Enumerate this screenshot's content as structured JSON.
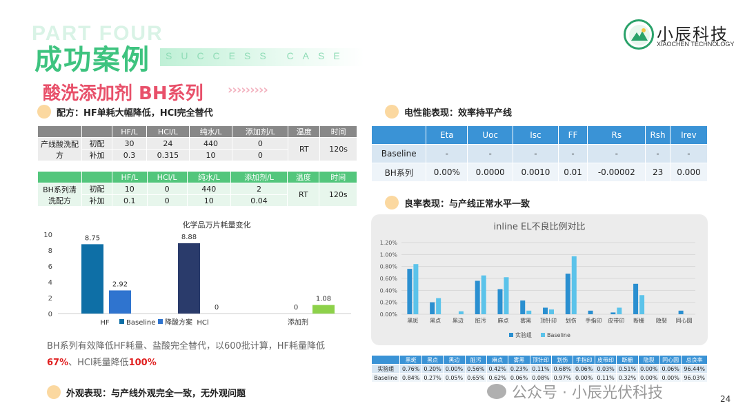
{
  "header": {
    "part_label": "PART FOUR",
    "title": "成功案例",
    "subtitle_en": "SUCCESS CASE",
    "brand_name": "小辰科技",
    "brand_en": "XIAOCHEN TECHNOLOGY"
  },
  "subtitle": "酸洗添加剂 BH系列",
  "chevrons": "›››››››››",
  "sections": {
    "formula": "配方：HF单耗大幅降低，HCl完全替代",
    "electrical": "电性能表现：效率持平产线",
    "yield": "良率表现：与产线正常水平一致",
    "appearance": "外观表现：与产线外观完全一致，无外观问题"
  },
  "formula_table1": {
    "headers": [
      "",
      "",
      "HF/L",
      "HCl/L",
      "纯水/L",
      "添加剂/L",
      "温度",
      "时间"
    ],
    "group": "产线酸洗配方",
    "rows": [
      {
        "type": "初配",
        "hf": "30",
        "hcl": "24",
        "water": "440",
        "add": "0"
      },
      {
        "type": "补加",
        "hf": "0.3",
        "hcl": "0.315",
        "water": "10",
        "add": "0"
      }
    ],
    "temp": "RT",
    "time": "120s"
  },
  "formula_table2": {
    "headers": [
      "",
      "",
      "HF/L",
      "HCl/L",
      "纯水/L",
      "添加剂/L",
      "温度",
      "时间"
    ],
    "group": "BH系列清洗配方",
    "rows": [
      {
        "type": "初配",
        "hf": "10",
        "hcl": "0",
        "water": "440",
        "add": "2"
      },
      {
        "type": "补加",
        "hf": "0.1",
        "hcl": "0",
        "water": "10",
        "add": "0.04"
      }
    ],
    "temp": "RT",
    "time": "120s"
  },
  "electrical_table": {
    "headers": [
      "",
      "Eta",
      "Uoc",
      "Isc",
      "FF",
      "Rs",
      "Rsh",
      "Irev"
    ],
    "rows": [
      [
        "Baseline",
        "-",
        "-",
        "-",
        "-",
        "-",
        "-",
        "-"
      ],
      [
        "BH系列",
        "0.00%",
        "0.0000",
        "0.0010",
        "0.01",
        "-0.00002",
        "23",
        "0.000"
      ]
    ]
  },
  "bar_chart": {
    "title": "化学品万片耗量变化",
    "legend": [
      "Baseline",
      "降酸方案"
    ],
    "colors": {
      "baseline": "#0e6fa6",
      "reduced": "#2f74cf",
      "hcl": "#2a3b6b",
      "additive": "#8dd14a"
    },
    "categories": [
      "HF",
      "HCl",
      "添加剂"
    ],
    "y_ticks": [
      "0",
      "2",
      "4",
      "6",
      "8",
      "10"
    ],
    "labels": [
      "8.75",
      "2.92",
      "8.88",
      "0",
      "0",
      "1.08"
    ]
  },
  "summary": {
    "line1": "BH系列有效降低HF耗量、盐酸完全替代，以600批计算，HF耗量降低",
    "pct1": "67%",
    "mid": "、HCl耗量降低",
    "pct2": "100%"
  },
  "line_chart": {
    "title": "inline EL不良比例对比",
    "legend": [
      "实验组",
      "Baseline"
    ],
    "colors": {
      "exp": "#2a8fd0",
      "base": "#5bc3ea"
    },
    "y_ticks": [
      "0.00%",
      "0.20%",
      "0.40%",
      "0.60%",
      "0.80%",
      "1.00%",
      "1.20%"
    ]
  },
  "yield_table": {
    "headers": [
      "",
      "黑斑",
      "黑点",
      "黑边",
      "脏污",
      "麻点",
      "雾黑",
      "顶针印",
      "划伤",
      "手指印",
      "皮带印",
      "断栅",
      "隐裂",
      "同心圆",
      "总良率"
    ],
    "rows": [
      [
        "实验组",
        "0.76%",
        "0.20%",
        "0.00%",
        "0.56%",
        "0.42%",
        "0.23%",
        "0.11%",
        "0.68%",
        "0.06%",
        "0.03%",
        "0.51%",
        "0.00%",
        "0.06%",
        "96.44%"
      ],
      [
        "Baseline",
        "0.84%",
        "0.27%",
        "0.05%",
        "0.65%",
        "0.62%",
        "0.06%",
        "0.08%",
        "0.97%",
        "0.00%",
        "0.11%",
        "0.32%",
        "0.00%",
        "0.00%",
        "96.03%"
      ]
    ]
  },
  "chart_data": [
    {
      "type": "bar",
      "title": "化学品万片耗量变化",
      "categories": [
        "HF",
        "HCl",
        "添加剂"
      ],
      "series": [
        {
          "name": "Baseline",
          "values": [
            8.75,
            8.88,
            0
          ]
        },
        {
          "name": "降酸方案",
          "values": [
            2.92,
            0,
            1.08
          ]
        }
      ],
      "ylim": [
        0,
        10
      ],
      "legend": "bottom"
    },
    {
      "type": "bar",
      "title": "inline EL不良比例对比",
      "categories": [
        "黑斑",
        "黑点",
        "黑边",
        "脏污",
        "麻点",
        "雾黑",
        "顶针印",
        "划伤",
        "手指印",
        "皮带印",
        "断栅",
        "隐裂",
        "同心圆"
      ],
      "series": [
        {
          "name": "实验组",
          "values": [
            0.76,
            0.2,
            0.0,
            0.56,
            0.42,
            0.23,
            0.11,
            0.68,
            0.06,
            0.03,
            0.51,
            0.0,
            0.06
          ]
        },
        {
          "name": "Baseline",
          "values": [
            0.84,
            0.27,
            0.05,
            0.65,
            0.62,
            0.06,
            0.08,
            0.97,
            0.0,
            0.11,
            0.32,
            0.0,
            0.0
          ]
        }
      ],
      "ylim": [
        0,
        1.2
      ],
      "legend": "bottom"
    }
  ],
  "footer": {
    "watermark": "公众号 · 小辰光伏科技",
    "page": "24"
  }
}
